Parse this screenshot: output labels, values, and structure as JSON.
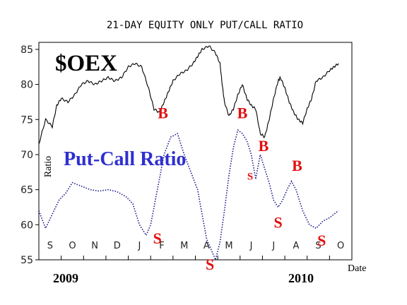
{
  "chart_data": {
    "type": "line",
    "title": "21-DAY EQUITY ONLY PUT/CALL RATIO",
    "ylabel": "Ratio",
    "xlabel": "Date",
    "ylim": [
      55,
      86
    ],
    "yticks": [
      55,
      60,
      65,
      70,
      75,
      80,
      85
    ],
    "month_labels": [
      "S",
      "O",
      "N",
      "D",
      "J",
      "F",
      "M",
      "A",
      "M",
      "J",
      "J",
      "A",
      "S",
      "O"
    ],
    "year_labels": [
      "2009",
      "2010"
    ],
    "annotations": {
      "oex_label": "$OEX",
      "pcr_label": "Put-Call Ratio"
    },
    "series": [
      {
        "name": "$OEX",
        "color": "#000000",
        "style": "solid",
        "x": [
          0,
          0.3,
          0.6,
          0.8,
          1.0,
          1.3,
          1.6,
          1.9,
          2.2,
          2.5,
          2.8,
          3.1,
          3.4,
          3.7,
          4.0,
          4.3,
          4.6,
          4.9,
          5.15,
          5.4,
          5.6,
          5.8,
          6.0,
          6.3,
          6.6,
          6.9,
          7.1,
          7.3,
          7.6,
          7.9,
          8.1,
          8.2,
          8.3,
          8.5,
          8.7,
          8.9,
          9.1,
          9.3,
          9.5,
          9.7,
          9.9,
          10.1,
          10.3,
          10.5,
          10.7,
          10.8,
          11.0,
          11.2,
          11.4,
          11.6,
          11.8,
          12.0,
          12.2,
          12.4,
          12.7,
          13.0,
          13.2,
          13.4
        ],
        "values": [
          71.5,
          75,
          74,
          77,
          78,
          77.5,
          78.5,
          80,
          80.5,
          80,
          80.5,
          81,
          80.5,
          81,
          82.5,
          83,
          82.5,
          79.5,
          76.5,
          76,
          77.5,
          79,
          80.5,
          81.5,
          82,
          83,
          84,
          85,
          85.5,
          84.5,
          83,
          80,
          77.5,
          75.5,
          76.5,
          78.5,
          80,
          78,
          77,
          76.5,
          73,
          72.5,
          75,
          78,
          80.5,
          81,
          79.5,
          77.5,
          76,
          75,
          74.5,
          76.5,
          78,
          80.5,
          81,
          82,
          82.5,
          83
        ]
      },
      {
        "name": "Put-Call Ratio",
        "color": "#1a1a8c",
        "style": "dotted",
        "x": [
          0,
          0.3,
          0.6,
          0.9,
          1.2,
          1.5,
          1.9,
          2.3,
          2.7,
          3.1,
          3.5,
          3.9,
          4.2,
          4.5,
          4.8,
          5.0,
          5.3,
          5.6,
          5.9,
          6.2,
          6.5,
          6.8,
          7.1,
          7.3,
          7.5,
          7.7,
          7.9,
          8.1,
          8.3,
          8.5,
          8.7,
          8.9,
          9.1,
          9.3,
          9.5,
          9.7,
          9.9,
          10.1,
          10.3,
          10.5,
          10.7,
          10.9,
          11.1,
          11.3,
          11.5,
          11.8,
          12.1,
          12.4,
          12.7,
          13.0,
          13.2,
          13.4
        ],
        "values": [
          62,
          59.5,
          61.5,
          63.5,
          64.5,
          66,
          65.5,
          65,
          64.8,
          65,
          64.7,
          64,
          63,
          60,
          58.5,
          60,
          65,
          70,
          72.5,
          73,
          70,
          67.5,
          65,
          61.5,
          58,
          56.5,
          55,
          57.5,
          62,
          67,
          71,
          73.5,
          73,
          72,
          70,
          66.5,
          70,
          68,
          66,
          63.5,
          62.5,
          63.5,
          65,
          66.2,
          65,
          62,
          60,
          59.5,
          60.5,
          61,
          61.5,
          62
        ]
      }
    ],
    "signals": [
      {
        "label": "B",
        "x": 5.55,
        "value": 75.2,
        "size": 22
      },
      {
        "label": "S",
        "x": 5.3,
        "value": 57.3,
        "size": 22
      },
      {
        "label": "S",
        "x": 7.65,
        "value": 53.6,
        "size": 22
      },
      {
        "label": "B",
        "x": 9.1,
        "value": 75.2,
        "size": 22
      },
      {
        "label": "B",
        "x": 10.05,
        "value": 70.5,
        "size": 22
      },
      {
        "label": "S",
        "x": 9.45,
        "value": 66.4,
        "size": 15
      },
      {
        "label": "S",
        "x": 10.7,
        "value": 59.6,
        "size": 22
      },
      {
        "label": "B",
        "x": 11.55,
        "value": 67.7,
        "size": 22
      },
      {
        "label": "S",
        "x": 12.65,
        "value": 57.0,
        "size": 22
      }
    ]
  }
}
